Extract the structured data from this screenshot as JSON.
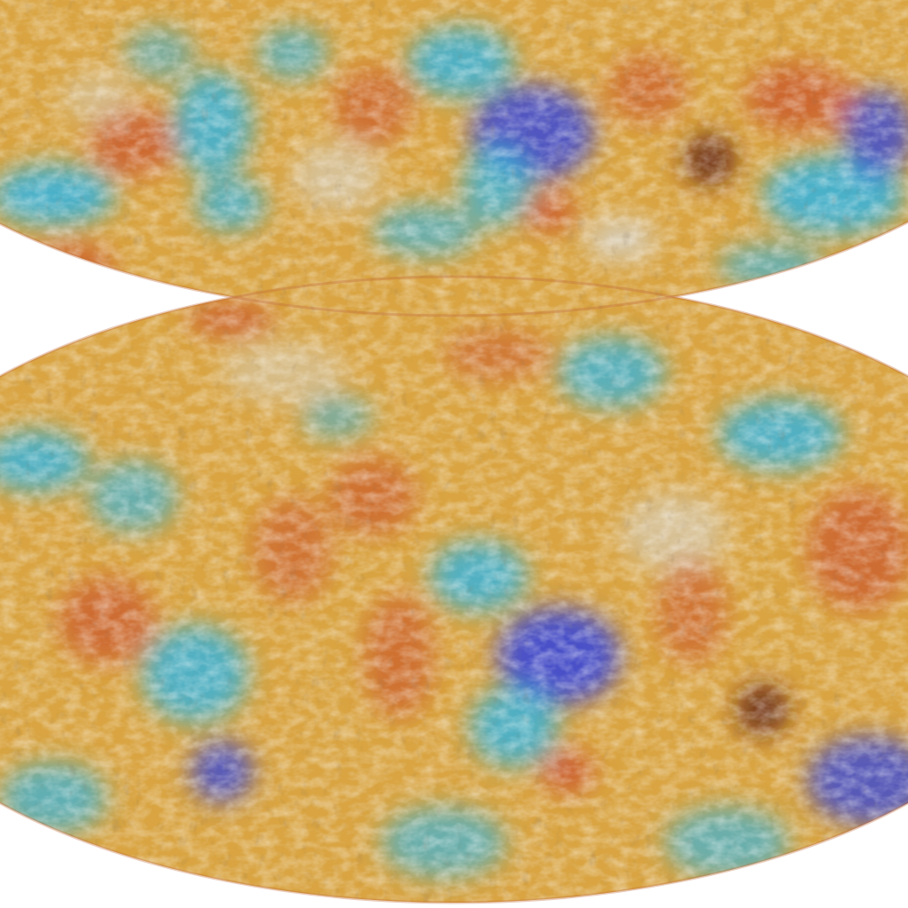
{
  "image": {
    "kind": "all-sky-map",
    "panels": 2,
    "projection": "mollweide",
    "palette": {
      "background": "#ffffff",
      "base_warm": "#d9a441",
      "hot": "#c8502a",
      "hottest": "#5a1a12",
      "neutral": "#d6d3cc",
      "cool": "#3bb3d8",
      "coldest": "#3a49d6"
    }
  }
}
